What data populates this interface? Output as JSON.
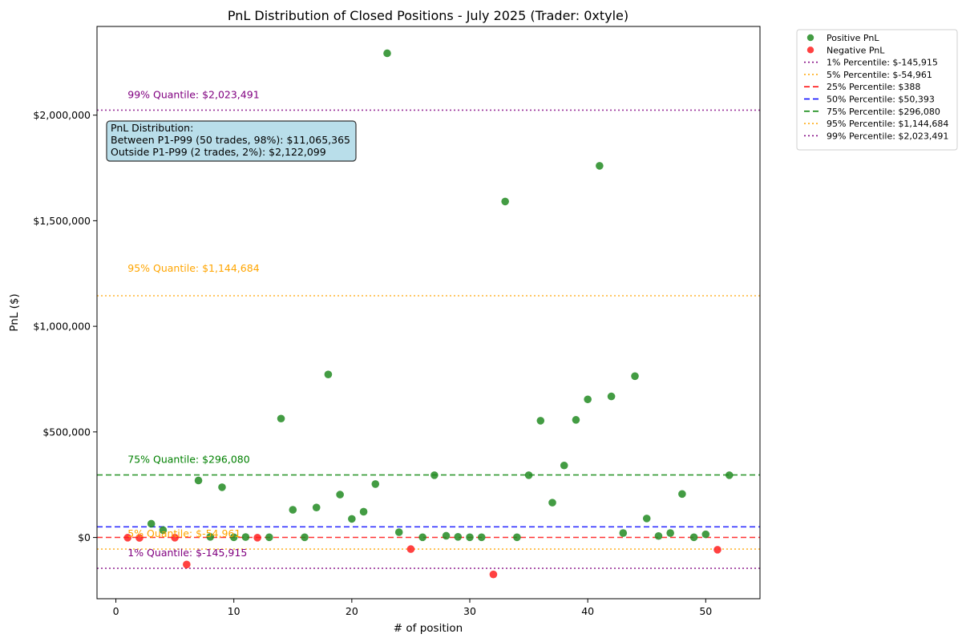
{
  "chart_data": {
    "type": "scatter",
    "title": "PnL Distribution of Closed Positions - July 2025 (Trader: 0xtyle)",
    "xlabel": "# of position",
    "ylabel": "PnL ($)",
    "xlim": [
      -1.6,
      54.6
    ],
    "ylim": [
      -290000,
      2420000
    ],
    "x_ticks": [
      0,
      10,
      20,
      30,
      40,
      50
    ],
    "x_tick_labels": [
      "0",
      "10",
      "20",
      "30",
      "40",
      "50"
    ],
    "y_ticks": [
      0,
      500000,
      1000000,
      1500000,
      2000000
    ],
    "y_tick_labels": [
      "$0",
      "$500,000",
      "$1,000,000",
      "$1,500,000",
      "$2,000,000"
    ],
    "colors": {
      "positive": "#228B22",
      "negative": "#FF2020"
    },
    "series": [
      {
        "name": "Positive PnL",
        "color": "#228B22",
        "points": [
          [
            3,
            65000
          ],
          [
            4,
            35000
          ],
          [
            7,
            270000
          ],
          [
            8,
            3000
          ],
          [
            9,
            238000
          ],
          [
            10,
            1000
          ],
          [
            11,
            2000
          ],
          [
            13,
            1000
          ],
          [
            14,
            563000
          ],
          [
            15,
            131000
          ],
          [
            16,
            1000
          ],
          [
            17,
            142000
          ],
          [
            18,
            772000
          ],
          [
            19,
            203000
          ],
          [
            20,
            88000
          ],
          [
            21,
            122000
          ],
          [
            22,
            253000
          ],
          [
            23,
            2293000
          ],
          [
            24,
            25000
          ],
          [
            26,
            1000
          ],
          [
            27,
            295000
          ],
          [
            28,
            8000
          ],
          [
            29,
            3000
          ],
          [
            30,
            1000
          ],
          [
            31,
            1000
          ],
          [
            33,
            1591000
          ],
          [
            34,
            1000
          ],
          [
            35,
            295000
          ],
          [
            36,
            553000
          ],
          [
            37,
            165000
          ],
          [
            38,
            341000
          ],
          [
            39,
            557000
          ],
          [
            40,
            654000
          ],
          [
            41,
            1760000
          ],
          [
            42,
            668000
          ],
          [
            43,
            21000
          ],
          [
            44,
            764000
          ],
          [
            45,
            90000
          ],
          [
            46,
            7000
          ],
          [
            47,
            21000
          ],
          [
            48,
            206000
          ],
          [
            49,
            1000
          ],
          [
            50,
            15000
          ],
          [
            52,
            295000
          ]
        ]
      },
      {
        "name": "Negative PnL",
        "color": "#FF2020",
        "points": [
          [
            1,
            -1000
          ],
          [
            2,
            -2000
          ],
          [
            5,
            -1000
          ],
          [
            6,
            -128000
          ],
          [
            12,
            -1000
          ],
          [
            25,
            -55000
          ],
          [
            32,
            -175000
          ],
          [
            51,
            -58000
          ]
        ]
      }
    ],
    "percentile_lines": [
      {
        "label": "1% Percentile: $-145,915",
        "value": -145915,
        "color": "#800080",
        "dash": "2,3",
        "quantile_label": "1% Quantile: $-145,915"
      },
      {
        "label": "5% Percentile: $-54,961",
        "value": -54961,
        "color": "#FFA500",
        "dash": "2,3",
        "quantile_label": "5% Quantile: $-54,961"
      },
      {
        "label": "25% Percentile: $388",
        "value": 388,
        "color": "#FF0000",
        "dash": "7,4",
        "quantile_label": ""
      },
      {
        "label": "50% Percentile: $50,393",
        "value": 50393,
        "color": "#0000FF",
        "dash": "7,4",
        "quantile_label": ""
      },
      {
        "label": "75% Percentile: $296,080",
        "value": 296080,
        "color": "#008000",
        "dash": "7,4",
        "quantile_label": "75% Quantile: $296,080"
      },
      {
        "label": "95% Percentile: $1,144,684",
        "value": 1144684,
        "color": "#FFA500",
        "dash": "2,3",
        "quantile_label": "95% Quantile: $1,144,684"
      },
      {
        "label": "99% Percentile: $2,023,491",
        "value": 2023491,
        "color": "#800080",
        "dash": "2,3",
        "quantile_label": "99% Quantile: $2,023,491"
      }
    ],
    "annotation": {
      "lines": [
        "PnL Distribution:",
        "Between P1-P99 (50 trades, 98%): $11,065,365",
        "Outside P1-P99 (2 trades, 2%): $2,122,099"
      ],
      "background": "#ADD8E6"
    },
    "legend_placement": "outside-right-top",
    "grid": false
  }
}
